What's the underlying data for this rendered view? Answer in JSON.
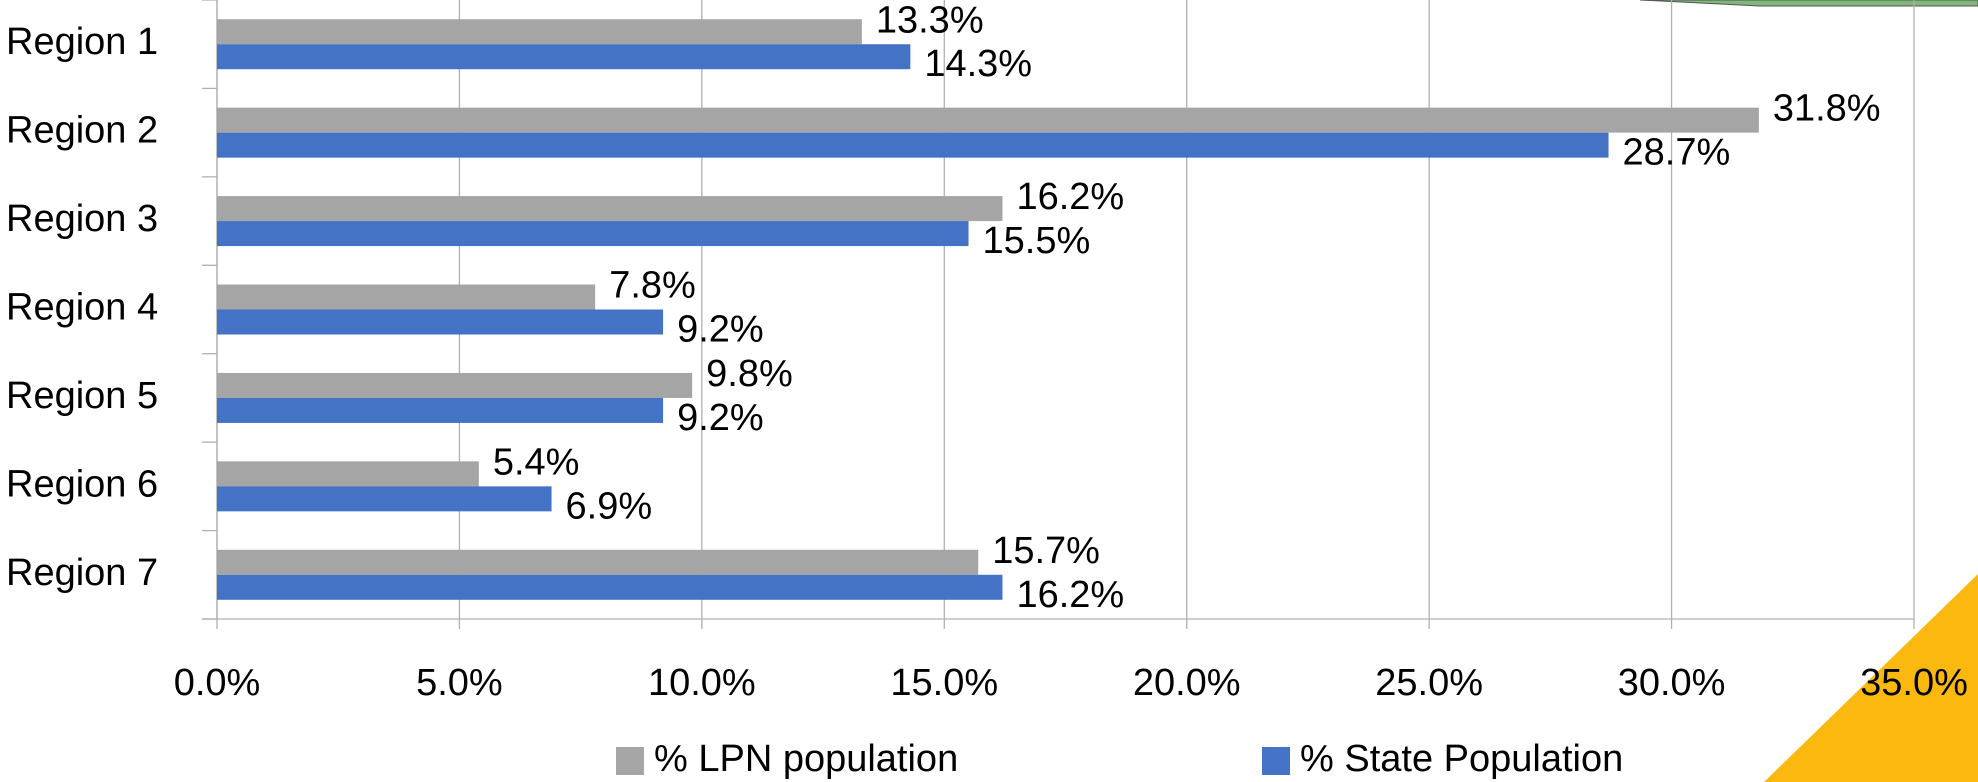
{
  "chart_data": {
    "type": "barh",
    "categories": [
      "Region 1",
      "Region 2",
      "Region 3",
      "Region 4",
      "Region 5",
      "Region 6",
      "Region 7"
    ],
    "series": [
      {
        "name": "% LPN population",
        "color": "#a5a5a5",
        "values": [
          13.3,
          31.8,
          16.2,
          7.8,
          9.8,
          5.4,
          15.7
        ],
        "value_labels": [
          "13.3%",
          "31.8%",
          "16.2%",
          "7.8%",
          "9.8%",
          "5.4%",
          "15.7%"
        ]
      },
      {
        "name": "% State Population",
        "color": "#4472c4",
        "values": [
          14.3,
          28.7,
          15.5,
          9.2,
          9.2,
          6.9,
          16.2
        ],
        "value_labels": [
          "14.3%",
          "28.7%",
          "15.5%",
          "9.2%",
          "9.2%",
          "6.9%",
          "16.2%"
        ]
      }
    ],
    "xlim": [
      0,
      35
    ],
    "xticks": [
      {
        "value": 0,
        "label": "0.0%"
      },
      {
        "value": 5,
        "label": "5.0%"
      },
      {
        "value": 10,
        "label": "10.0%"
      },
      {
        "value": 15,
        "label": "15.0%"
      },
      {
        "value": 20,
        "label": "20.0%"
      },
      {
        "value": 25,
        "label": "25.0%"
      },
      {
        "value": 30,
        "label": "30.0%"
      },
      {
        "value": 35,
        "label": "35.0%"
      }
    ],
    "grid": true,
    "legend": "bottom"
  }
}
